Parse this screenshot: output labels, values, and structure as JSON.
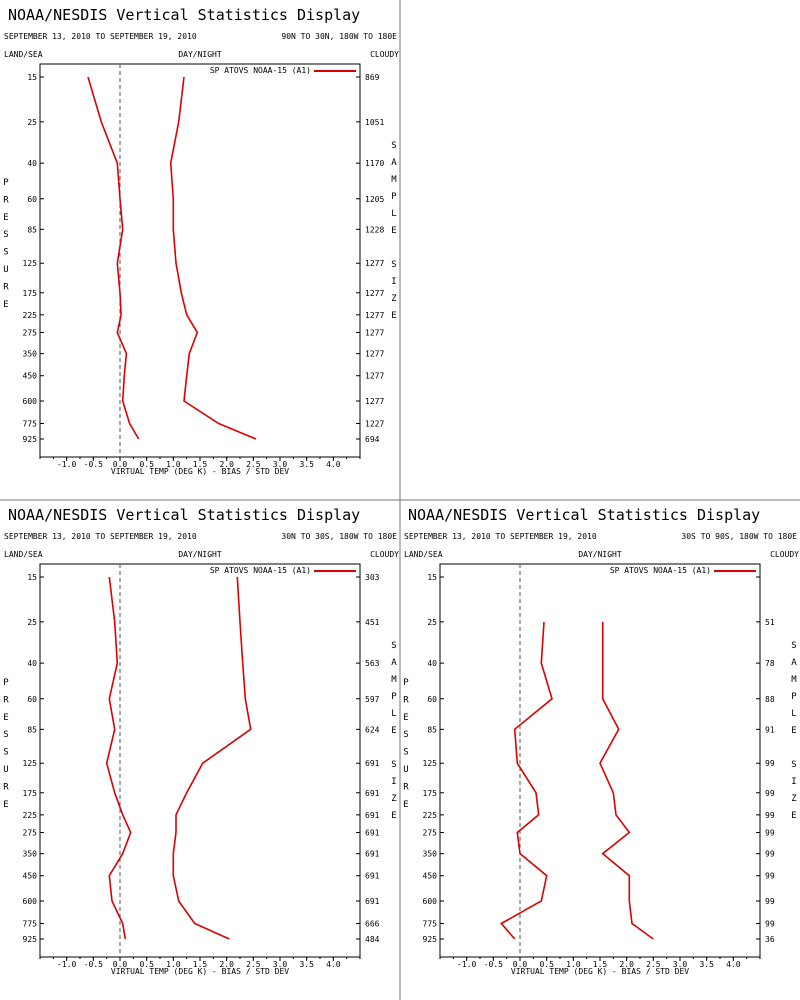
{
  "chart_data": [
    {
      "type": "line",
      "title": "NOAA/NESDIS Vertical Statistics Display",
      "date_range": "SEPTEMBER 13, 2010 TO SEPTEMBER 19, 2010",
      "region": "90N TO 30N, 180W TO 180E",
      "flags": {
        "left": "LAND/SEA",
        "center": "DAY/NIGHT",
        "right": "CLOUDY"
      },
      "legend": "SP ATOVS NOAA-15 (A1)",
      "ylabel": "PRESSURE",
      "y2label": "SAMPLE SIZE",
      "xlabel": "VIRTUAL TEMP (DEG K) - BIAS / STD DEV",
      "xlim": [
        -1.5,
        4.5
      ],
      "x_ticks": [
        "-1.0",
        "-0.5",
        "0.0",
        "0.5",
        "1.0",
        "1.5",
        "2.0",
        "2.5",
        "3.0",
        "3.5",
        "4.0"
      ],
      "x_tick_values": [
        -1.0,
        -0.5,
        0.0,
        0.5,
        1.0,
        1.5,
        2.0,
        2.5,
        3.0,
        3.5,
        4.0
      ],
      "pressure_levels": [
        "15",
        "25",
        "40",
        "60",
        "85",
        "125",
        "175",
        "225",
        "275",
        "350",
        "450",
        "600",
        "775",
        "925"
      ],
      "pressure_values": [
        15,
        25,
        40,
        60,
        85,
        125,
        175,
        225,
        275,
        350,
        450,
        600,
        775,
        925
      ],
      "sample_sizes": [
        "869",
        "1051",
        "1170",
        "1205",
        "1228",
        "1277",
        "1277",
        "1277",
        "1277",
        "1277",
        "1277",
        "1277",
        "1227",
        "694"
      ],
      "series": [
        {
          "role": "bias",
          "color": "#dd0000",
          "values": [
            -0.6,
            -0.35,
            -0.05,
            0.0,
            0.05,
            -0.05,
            0.0,
            0.02,
            -0.05,
            0.12,
            0.08,
            0.05,
            0.18,
            0.35
          ],
          "start_index": 0
        },
        {
          "role": "std_dev",
          "color": "#dd0000",
          "values": [
            1.2,
            1.1,
            0.95,
            1.0,
            1.0,
            1.05,
            1.15,
            1.25,
            1.45,
            1.3,
            1.25,
            1.2,
            1.85,
            2.55
          ],
          "start_index": 0
        }
      ]
    },
    {
      "type": "line",
      "title": "NOAA/NESDIS Vertical Statistics Display",
      "date_range": "SEPTEMBER 13, 2010 TO SEPTEMBER 19, 2010",
      "region": "30N TO 30S, 180W TO 180E",
      "flags": {
        "left": "LAND/SEA",
        "center": "DAY/NIGHT",
        "right": "CLOUDY"
      },
      "legend": "SP ATOVS NOAA-15 (A1)",
      "ylabel": "PRESSURE",
      "y2label": "SAMPLE SIZE",
      "xlabel": "VIRTUAL TEMP (DEG K) - BIAS / STD DEV",
      "xlim": [
        -1.5,
        4.5
      ],
      "x_ticks": [
        "-1.0",
        "-0.5",
        "0.0",
        "0.5",
        "1.0",
        "1.5",
        "2.0",
        "2.5",
        "3.0",
        "3.5",
        "4.0"
      ],
      "x_tick_values": [
        -1.0,
        -0.5,
        0.0,
        0.5,
        1.0,
        1.5,
        2.0,
        2.5,
        3.0,
        3.5,
        4.0
      ],
      "pressure_levels": [
        "15",
        "25",
        "40",
        "60",
        "85",
        "125",
        "175",
        "225",
        "275",
        "350",
        "450",
        "600",
        "775",
        "925"
      ],
      "pressure_values": [
        15,
        25,
        40,
        60,
        85,
        125,
        175,
        225,
        275,
        350,
        450,
        600,
        775,
        925
      ],
      "sample_sizes": [
        "303",
        "451",
        "563",
        "597",
        "624",
        "691",
        "691",
        "691",
        "691",
        "691",
        "691",
        "691",
        "666",
        "484"
      ],
      "series": [
        {
          "role": "bias",
          "color": "#dd0000",
          "values": [
            -0.2,
            -0.1,
            -0.05,
            -0.2,
            -0.1,
            -0.25,
            -0.1,
            0.05,
            0.2,
            0.05,
            -0.2,
            -0.15,
            0.05,
            0.1
          ],
          "start_index": 0
        },
        {
          "role": "std_dev",
          "color": "#dd0000",
          "values": [
            2.2,
            2.25,
            2.3,
            2.35,
            2.45,
            1.55,
            1.25,
            1.05,
            1.05,
            1.0,
            1.0,
            1.1,
            1.4,
            2.05
          ],
          "start_index": 0
        }
      ]
    },
    {
      "type": "line",
      "title": "NOAA/NESDIS Vertical Statistics Display",
      "date_range": "SEPTEMBER 13, 2010 TO SEPTEMBER 19, 2010",
      "region": "30S TO 90S, 180W TO 180E",
      "flags": {
        "left": "LAND/SEA",
        "center": "DAY/NIGHT",
        "right": "CLOUDY"
      },
      "legend": "SP ATOVS NOAA-15 (A1)",
      "ylabel": "PRESSURE",
      "y2label": "SAMPLE SIZE",
      "xlabel": "VIRTUAL TEMP (DEG K) - BIAS / STD DEV",
      "xlim": [
        -1.5,
        4.5
      ],
      "x_ticks": [
        "-1.0",
        "-0.5",
        "0.0",
        "0.5",
        "1.0",
        "1.5",
        "2.0",
        "2.5",
        "3.0",
        "3.5",
        "4.0"
      ],
      "x_tick_values": [
        -1.0,
        -0.5,
        0.0,
        0.5,
        1.0,
        1.5,
        2.0,
        2.5,
        3.0,
        3.5,
        4.0
      ],
      "pressure_levels": [
        "15",
        "25",
        "40",
        "60",
        "85",
        "125",
        "175",
        "225",
        "275",
        "350",
        "450",
        "600",
        "775",
        "925"
      ],
      "pressure_values": [
        15,
        25,
        40,
        60,
        85,
        125,
        175,
        225,
        275,
        350,
        450,
        600,
        775,
        925
      ],
      "sample_sizes": [
        "",
        "51",
        "78",
        "88",
        "91",
        "99",
        "99",
        "99",
        "99",
        "99",
        "99",
        "99",
        "99",
        "36"
      ],
      "series": [
        {
          "role": "bias",
          "color": "#dd0000",
          "values": [
            0.45,
            0.4,
            0.6,
            -0.1,
            -0.05,
            0.3,
            0.35,
            -0.05,
            0.0,
            0.5,
            0.4,
            -0.35,
            -0.1
          ],
          "start_index": 1
        },
        {
          "role": "std_dev",
          "color": "#dd0000",
          "values": [
            1.55,
            1.55,
            1.55,
            1.85,
            1.5,
            1.75,
            1.8,
            2.05,
            1.55,
            2.05,
            2.05,
            2.1,
            2.5
          ],
          "start_index": 1
        }
      ]
    }
  ]
}
